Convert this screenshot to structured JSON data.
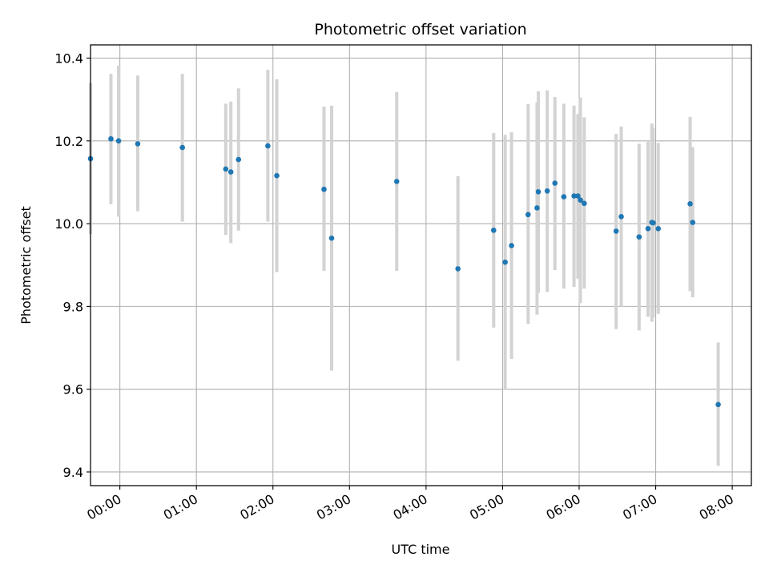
{
  "chart_data": {
    "type": "scatter",
    "title": "Photometric offset variation",
    "xlabel": "UTC time",
    "ylabel": "Photometric offset",
    "x_ticks": [
      "00:00",
      "01:00",
      "02:00",
      "03:00",
      "04:00",
      "05:00",
      "06:00",
      "07:00",
      "08:00"
    ],
    "y_ticks": [
      "9.4",
      "9.6",
      "9.8",
      "10.0",
      "10.2",
      "10.4"
    ],
    "xlim": [
      "-0:23",
      "08:15"
    ],
    "ylim": [
      9.367,
      10.432
    ],
    "grid": true,
    "marker_color": "#1f77b4",
    "errorbar_color": "#d3d3d3",
    "points": [
      {
        "x": "-0:23",
        "y": 10.157,
        "err_low": 9.975,
        "err_high": 10.34
      },
      {
        "x": "-0:07",
        "y": 10.205,
        "err_low": 10.047,
        "err_high": 10.362
      },
      {
        "x": "-0:01",
        "y": 10.2,
        "err_low": 10.017,
        "err_high": 10.382
      },
      {
        "x": "00:14",
        "y": 10.193,
        "err_low": 10.03,
        "err_high": 10.358
      },
      {
        "x": "00:49",
        "y": 10.184,
        "err_low": 10.005,
        "err_high": 10.362
      },
      {
        "x": "01:23",
        "y": 10.132,
        "err_low": 9.973,
        "err_high": 10.29
      },
      {
        "x": "01:27",
        "y": 10.125,
        "err_low": 9.953,
        "err_high": 10.295
      },
      {
        "x": "01:33",
        "y": 10.155,
        "err_low": 9.983,
        "err_high": 10.327
      },
      {
        "x": "01:56",
        "y": 10.188,
        "err_low": 10.005,
        "err_high": 10.372
      },
      {
        "x": "02:03",
        "y": 10.116,
        "err_low": 9.883,
        "err_high": 10.349
      },
      {
        "x": "02:40",
        "y": 10.083,
        "err_low": 9.886,
        "err_high": 10.283
      },
      {
        "x": "02:46",
        "y": 9.965,
        "err_low": 9.645,
        "err_high": 10.285
      },
      {
        "x": "03:37",
        "y": 10.102,
        "err_low": 9.886,
        "err_high": 10.318
      },
      {
        "x": "04:25",
        "y": 9.891,
        "err_low": 9.669,
        "err_high": 10.115
      },
      {
        "x": "04:53",
        "y": 9.984,
        "err_low": 9.749,
        "err_high": 10.219
      },
      {
        "x": "05:02",
        "y": 9.907,
        "err_low": 9.6,
        "err_high": 10.215
      },
      {
        "x": "05:07",
        "y": 9.947,
        "err_low": 9.673,
        "err_high": 10.221
      },
      {
        "x": "05:20",
        "y": 10.022,
        "err_low": 9.758,
        "err_high": 10.289
      },
      {
        "x": "05:27",
        "y": 10.038,
        "err_low": 9.78,
        "err_high": 10.293
      },
      {
        "x": "05:28",
        "y": 10.077,
        "err_low": 9.833,
        "err_high": 10.32
      },
      {
        "x": "05:35",
        "y": 10.079,
        "err_low": 9.835,
        "err_high": 10.322
      },
      {
        "x": "05:41",
        "y": 10.098,
        "err_low": 9.888,
        "err_high": 10.306
      },
      {
        "x": "05:48",
        "y": 10.065,
        "err_low": 9.843,
        "err_high": 10.29
      },
      {
        "x": "05:56",
        "y": 10.067,
        "err_low": 9.847,
        "err_high": 10.285
      },
      {
        "x": "05:59",
        "y": 10.067,
        "err_low": 9.867,
        "err_high": 10.265
      },
      {
        "x": "06:01",
        "y": 10.057,
        "err_low": 9.808,
        "err_high": 10.305
      },
      {
        "x": "06:04",
        "y": 10.049,
        "err_low": 9.843,
        "err_high": 10.257
      },
      {
        "x": "06:29",
        "y": 9.982,
        "err_low": 9.745,
        "err_high": 10.217
      },
      {
        "x": "06:33",
        "y": 10.017,
        "err_low": 9.8,
        "err_high": 10.235
      },
      {
        "x": "06:47",
        "y": 9.968,
        "err_low": 9.742,
        "err_high": 10.193
      },
      {
        "x": "06:54",
        "y": 9.988,
        "err_low": 9.775,
        "err_high": 10.198
      },
      {
        "x": "06:57",
        "y": 10.003,
        "err_low": 9.763,
        "err_high": 10.242
      },
      {
        "x": "06:58",
        "y": 10.002,
        "err_low": 9.773,
        "err_high": 10.232
      },
      {
        "x": "07:02",
        "y": 9.988,
        "err_low": 9.782,
        "err_high": 10.195
      },
      {
        "x": "07:27",
        "y": 10.048,
        "err_low": 9.837,
        "err_high": 10.258
      },
      {
        "x": "07:29",
        "y": 10.003,
        "err_low": 9.822,
        "err_high": 10.185
      },
      {
        "x": "07:49",
        "y": 9.563,
        "err_low": 9.415,
        "err_high": 9.713
      }
    ]
  }
}
